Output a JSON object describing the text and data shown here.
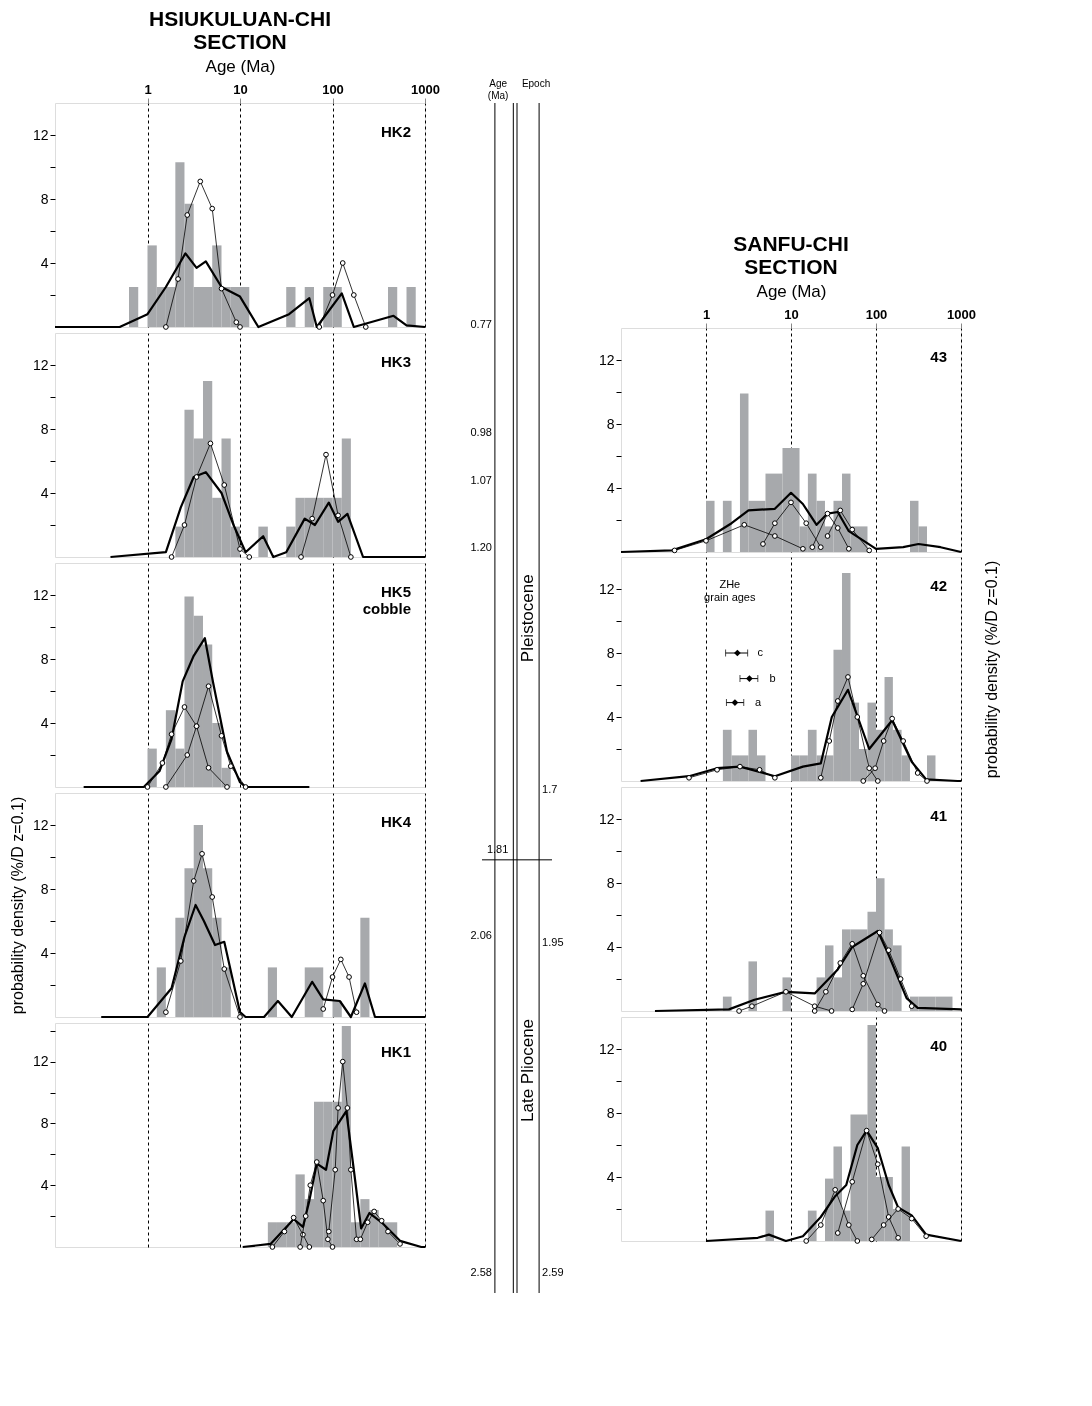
{
  "chart_data": [
    {
      "type": "histogram",
      "title": "HSIUKULUAN-CHI\nSECTION",
      "xlabel": "Age (Ma)",
      "log": "x",
      "grid": "x",
      "xlim": [
        0.1,
        1000
      ],
      "xticks": [
        1,
        10,
        100,
        1000
      ],
      "ylim": [
        0,
        14
      ],
      "yticks": [
        {
          "value": 2,
          "label": null
        },
        4,
        {
          "value": 6,
          "label": null
        },
        8,
        {
          "value": 10,
          "label": null
        },
        12
      ],
      "color": "#a7a9ac",
      "annotations": [
        "HK2"
      ],
      "bins": [
        0.631,
        0.794,
        1,
        1.26,
        1.58,
        2,
        2.51,
        3.16,
        3.98,
        5.01,
        6.31,
        7.94,
        10,
        12.6,
        15.8,
        20,
        25.1,
        31.6,
        39.8,
        50.1,
        63.1,
        79.4,
        100,
        126,
        158,
        200,
        251,
        316,
        398,
        501,
        631,
        794
      ],
      "values": [
        2.5,
        0,
        5.1,
        2.5,
        2.5,
        10.3,
        7.7,
        2.5,
        2.5,
        5.1,
        2.5,
        2.5,
        2.5,
        0,
        0,
        0,
        0,
        2.5,
        0,
        2.5,
        0,
        2.5,
        2.5,
        0,
        0,
        0,
        0,
        0,
        2.5,
        0,
        2.5
      ],
      "series": [
        {
          "type": "line",
          "color": "#000000",
          "x": [
            0.1,
            0.5,
            1,
            1.58,
            2.57,
            3.39,
            4.27,
            6.31,
            10,
            15.8,
            33.9,
            56.2,
            67.6,
            126,
            170,
            457,
            631,
            1000
          ],
          "values": [
            0,
            0,
            0.8,
            2.5,
            4.6,
            3.7,
            4.1,
            2.5,
            1.9,
            0,
            0.8,
            1.8,
            0,
            2.1,
            0,
            0.7,
            0.1,
            0
          ]
        },
        {
          "type": "line",
          "color": "#000000",
          "marker": "circle",
          "x": [
            1.58,
            2.14,
            2.69,
            3.72,
            5.01,
            6.31,
            9.12,
            10
          ],
          "values": [
            0,
            3,
            7,
            9.1,
            7.4,
            2.4,
            0.3,
            0
          ]
        },
        {
          "type": "line",
          "color": "#000000",
          "marker": "circle",
          "x": [
            72,
            100,
            129,
            170,
            229
          ],
          "values": [
            0,
            2,
            4,
            2,
            0
          ]
        }
      ]
    },
    {
      "type": "histogram",
      "log": "x",
      "grid": "x",
      "tick_labels": "y",
      "xlim": [
        0.1,
        1000
      ],
      "xticks": [
        1,
        10,
        100,
        1000
      ],
      "ylim": [
        0,
        14
      ],
      "yticks": [
        {
          "value": 2,
          "label": null
        },
        4,
        {
          "value": 6,
          "label": null
        },
        8,
        {
          "value": 10,
          "label": null
        },
        12
      ],
      "color": "#a7a9ac",
      "annotations": [
        "HK3"
      ],
      "bins": [
        2,
        2.51,
        3.16,
        3.98,
        5.01,
        6.31,
        7.94,
        10,
        12.6,
        15.8,
        20,
        25.1,
        31.6,
        39.8,
        50.1,
        63.1,
        79.4,
        100,
        126,
        158
      ],
      "values": [
        1.9,
        9.2,
        7.4,
        11.0,
        3.7,
        7.4,
        1.9,
        0,
        0,
        1.9,
        0,
        0,
        1.9,
        3.7,
        3.7,
        3.7,
        3.7,
        3.7,
        7.4
      ],
      "series": [
        {
          "type": "line",
          "color": "#000000",
          "x": [
            0.398,
            1.58,
            2.29,
            3.16,
            4.27,
            6.31,
            8.51,
            11.5,
            17.8,
            22.9,
            31.6,
            50.1,
            64.6,
            91.2,
            115,
            145,
            214,
            1000
          ],
          "values": [
            0,
            0.3,
            3.1,
            5.0,
            5.3,
            4.0,
            2.0,
            0.3,
            1.3,
            0,
            0.3,
            2.4,
            2.0,
            3.4,
            2.2,
            2.7,
            0,
            0
          ]
        },
        {
          "type": "line",
          "color": "#000000",
          "marker": "circle",
          "x": [
            1.82,
            2.51,
            3.39,
            4.79,
            6.76,
            10,
            12.6
          ],
          "values": [
            0,
            2,
            5,
            7.1,
            4.5,
            0.5,
            0
          ]
        },
        {
          "type": "line",
          "color": "#000000",
          "marker": "circle",
          "x": [
            45.7,
            60.3,
            85.1,
            115,
            158
          ],
          "values": [
            0,
            2.4,
            6.4,
            2.6,
            0
          ]
        }
      ]
    },
    {
      "type": "histogram",
      "log": "x",
      "grid": "x",
      "tick_labels": "y",
      "xlim": [
        0.1,
        1000
      ],
      "xticks": [
        1,
        10,
        100,
        1000
      ],
      "ylim": [
        0,
        14
      ],
      "yticks": [
        {
          "value": 2,
          "label": null
        },
        4,
        {
          "value": 6,
          "label": null
        },
        8,
        {
          "value": 10,
          "label": null
        },
        12
      ],
      "color": "#a7a9ac",
      "annotations": [
        "HK5\ncobble"
      ],
      "bins": [
        1,
        1.26,
        1.58,
        2,
        2.51,
        3.16,
        3.98,
        5.01,
        6.31,
        7.94
      ],
      "values": [
        2.4,
        0,
        4.8,
        2.4,
        11.9,
        10.7,
        8.9,
        4.0,
        1.2
      ],
      "series": [
        {
          "type": "line",
          "color": "#000000",
          "x": [
            0.204,
            0.912,
            1.35,
            1.82,
            2.4,
            3.16,
            4.17,
            5.13,
            7.24,
            10,
            11.5,
            56.2
          ],
          "values": [
            0,
            0,
            1,
            3,
            6.6,
            8.2,
            9.3,
            6.5,
            2.2,
            0.3,
            0,
            0
          ]
        },
        {
          "type": "line",
          "color": "#000000",
          "marker": "circle",
          "x": [
            1,
            1.45,
            1.82,
            2.51,
            3.39,
            4.57,
            7.24
          ],
          "values": [
            0,
            1.5,
            3.3,
            5.0,
            3.8,
            1.2,
            0
          ]
        },
        {
          "type": "line",
          "color": "#000000",
          "marker": "circle",
          "x": [
            1.58,
            2.69,
            3.39,
            4.57,
            6.31,
            7.94,
            11.5
          ],
          "values": [
            0,
            2,
            3.8,
            6.3,
            3.2,
            1.3,
            0
          ]
        }
      ]
    },
    {
      "type": "histogram",
      "ylabel": "probability density (%/D z=0.1)",
      "log": "x",
      "grid": "x",
      "tick_labels": "y",
      "xlim": [
        0.1,
        1000
      ],
      "xticks": [
        1,
        10,
        100,
        1000
      ],
      "ylim": [
        0,
        14
      ],
      "yticks": [
        {
          "value": 2,
          "label": null
        },
        4,
        {
          "value": 6,
          "label": null
        },
        8,
        {
          "value": 10,
          "label": null
        },
        12
      ],
      "color": "#a7a9ac",
      "annotations": [
        "HK4"
      ],
      "bins": [
        1.26,
        1.58,
        2,
        2.51,
        3.16,
        3.98,
        5.01,
        6.31,
        7.94,
        10,
        12.6,
        15.8,
        20,
        25.1,
        31.6,
        39.8,
        50.1,
        63.1,
        79.4,
        100,
        126,
        158,
        200,
        251
      ],
      "values": [
        3.1,
        0,
        6.2,
        9.3,
        12.0,
        9.3,
        6.2,
        3.1,
        0,
        0,
        0,
        0,
        3.1,
        0,
        0,
        0,
        3.1,
        3.1,
        0,
        1.0,
        0,
        0,
        6.2
      ],
      "series": [
        {
          "type": "line",
          "color": "#000000",
          "x": [
            0.316,
            1,
            1.82,
            2.51,
            3.31,
            4.07,
            5.37,
            6.76,
            10,
            11.5,
            18.2,
            25.7,
            36.3,
            60.3,
            79.4,
            120,
            158,
            224,
            288,
            1000
          ],
          "values": [
            0,
            0,
            1.8,
            5.0,
            7.0,
            6.0,
            4.5,
            4.7,
            0.3,
            0,
            0,
            1.0,
            0,
            2.2,
            1.1,
            1.0,
            0,
            2.1,
            0,
            0
          ]
        },
        {
          "type": "line",
          "color": "#000000",
          "marker": "circle",
          "x": [
            1.58,
            2.29,
            3.16,
            3.89,
            5.01,
            6.76,
            10
          ],
          "values": [
            0.3,
            3.5,
            8.5,
            10.2,
            7.5,
            3,
            0
          ]
        },
        {
          "type": "line",
          "color": "#000000",
          "marker": "circle",
          "x": [
            79.4,
            100,
            123,
            151,
            182
          ],
          "values": [
            0.5,
            2.5,
            3.6,
            2.5,
            0.3
          ]
        }
      ]
    },
    {
      "type": "histogram",
      "log": "x",
      "grid": "x",
      "tick_labels": "y",
      "xlim": [
        0.1,
        1000
      ],
      "xticks": [
        1,
        10,
        100,
        1000
      ],
      "ylim": [
        0,
        14.5
      ],
      "yticks": [
        {
          "value": 2,
          "label": null
        },
        4,
        {
          "value": 6,
          "label": null
        },
        8,
        {
          "value": 10,
          "label": null
        },
        12,
        {
          "value": 14,
          "label": null
        }
      ],
      "color": "#a7a9ac",
      "annotations": [
        "HK1"
      ],
      "bins": [
        20,
        25.1,
        31.6,
        39.8,
        50.1,
        63.1,
        79.4,
        100,
        126,
        158,
        200,
        251,
        316,
        398,
        501
      ],
      "values": [
        1.6,
        1.6,
        1.6,
        4.7,
        3.1,
        9.4,
        9.4,
        9.4,
        14.3,
        1.6,
        3.1,
        2.4,
        1.6,
        1.6
      ],
      "series": [
        {
          "type": "line",
          "color": "#000000",
          "x": [
            10.7,
            21.4,
            38,
            47.9,
            56.2,
            67.6,
            85.1,
            102,
            141,
            170,
            204,
            251,
            339,
            537,
            912,
            1000
          ],
          "values": [
            0,
            0.2,
            1.8,
            1.3,
            3.0,
            5.4,
            5.0,
            7.5,
            8.8,
            5.0,
            1.2,
            2.2,
            1.6,
            0.4,
            0,
            0
          ]
        },
        {
          "type": "line",
          "color": "#000000",
          "marker": "circle",
          "x": [
            22.4,
            30.2,
            38,
            47.9,
            56.2
          ],
          "values": [
            0,
            1.0,
            1.9,
            0.8,
            0
          ]
        },
        {
          "type": "line",
          "color": "#000000",
          "marker": "circle",
          "x": [
            44.7,
            51.3,
            57.5,
            67.6,
            79.4,
            89.1,
            100
          ],
          "values": [
            0,
            2,
            4,
            5.5,
            3,
            0.5,
            0
          ]
        },
        {
          "type": "line",
          "color": "#000000",
          "marker": "circle",
          "x": [
            91.2,
            107,
            115,
            129,
            145,
            158,
            182
          ],
          "values": [
            1,
            5,
            9,
            12,
            9,
            5,
            0.5
          ]
        },
        {
          "type": "line",
          "color": "#000000",
          "marker": "circle",
          "x": [
            200,
            240,
            282,
            340,
            398,
            537
          ],
          "values": [
            0.5,
            1.6,
            2.3,
            1.7,
            1.0,
            0.2
          ]
        }
      ]
    },
    {
      "type": "other",
      "ylabel": "Age\n(Ma)",
      "y2label": "Epoch",
      "annotations": [
        "0.77",
        "0.98",
        "1.07",
        "1.20",
        "1.81",
        "2.06",
        "2.58",
        "1.7",
        "1.95",
        "2.59",
        "Pleistocene",
        "Late Pliocene"
      ]
    },
    {
      "type": "histogram",
      "title": "SANFU-CHI\nSECTION",
      "xlabel": "Age (Ma)",
      "log": "x",
      "grid": "x",
      "xlim": [
        0.1,
        1000
      ],
      "xticks": [
        1,
        10,
        100,
        1000
      ],
      "ylim": [
        0,
        14
      ],
      "yticks": [
        {
          "value": 2,
          "label": null
        },
        4,
        {
          "value": 6,
          "label": null
        },
        8,
        {
          "value": 10,
          "label": null
        },
        12
      ],
      "color": "#a7a9ac",
      "annotations": [
        "43"
      ],
      "bins": [
        1,
        1.26,
        1.58,
        2,
        2.51,
        3.16,
        3.98,
        5.01,
        6.31,
        7.94,
        10,
        12.6,
        15.8,
        20,
        25.1,
        31.6,
        39.8,
        50.1,
        63.1,
        79.4,
        100,
        126,
        158,
        200,
        251,
        316,
        398
      ],
      "values": [
        3.2,
        0,
        3.2,
        0,
        9.9,
        3.2,
        3.2,
        4.9,
        4.9,
        6.5,
        6.5,
        1.6,
        4.9,
        3.2,
        1.6,
        3.2,
        4.9,
        1.6,
        1.6,
        0,
        0,
        0,
        0,
        0,
        3.2,
        1.6
      ],
      "series": [
        {
          "type": "line",
          "color": "#000000",
          "x": [
            0.1,
            0.398,
            1,
            2,
            3.16,
            6.46,
            10,
            13.8,
            20,
            26.9,
            35.5,
            47.9,
            100,
            209,
            316,
            575,
            1000
          ],
          "values": [
            0,
            0.1,
            0.8,
            1.8,
            2.6,
            2.7,
            3.7,
            3.0,
            1.7,
            2.4,
            2.5,
            1.3,
            0.2,
            0.3,
            0.5,
            0.3,
            0
          ]
        },
        {
          "type": "line",
          "color": "#000000",
          "marker": "circle",
          "x": [
            0.427,
            1,
            2.82,
            6.46,
            13.8
          ],
          "values": [
            0.1,
            0.7,
            1.7,
            1.0,
            0.2
          ]
        },
        {
          "type": "line",
          "color": "#000000",
          "marker": "circle",
          "x": [
            4.68,
            6.46,
            10,
            15.1,
            22.4
          ],
          "values": [
            0.5,
            1.8,
            3.1,
            1.8,
            0.3
          ]
        },
        {
          "type": "line",
          "color": "#000000",
          "marker": "circle",
          "x": [
            17.8,
            26.9,
            35.5,
            47.9
          ],
          "values": [
            0.3,
            2.4,
            1.5,
            0.2
          ]
        },
        {
          "type": "line",
          "color": "#000000",
          "marker": "circle",
          "x": [
            26.9,
            38,
            52.5,
            83.2
          ],
          "values": [
            1.0,
            2.6,
            1.4,
            0.1
          ]
        }
      ]
    },
    {
      "type": "histogram",
      "log": "x",
      "grid": "x",
      "tick_labels": "y",
      "xlim": [
        0.1,
        1000
      ],
      "xticks": [
        1,
        10,
        100,
        1000
      ],
      "ylim": [
        0,
        14
      ],
      "yticks": [
        {
          "value": 2,
          "label": null
        },
        4,
        {
          "value": 6,
          "label": null
        },
        8,
        {
          "value": 10,
          "label": null
        },
        12
      ],
      "color": "#a7a9ac",
      "ylabel": "probability density (%/D z=0.1)",
      "annotations": [
        "42",
        "ZHe\ngrain ages",
        {
          "text": "a",
          "x": 2.19,
          "y": 4.9
        },
        {
          "text": "b",
          "x": 3.24,
          "y": 6.4
        },
        {
          "text": "c",
          "x": 2.34,
          "y": 8.0
        }
      ],
      "bins": [
        1.58,
        2,
        2.51,
        3.16,
        3.98,
        5.01,
        6.31,
        7.94,
        10,
        12.6,
        15.8,
        20,
        25.1,
        31.6,
        39.8,
        50.1,
        63.1,
        79.4,
        100,
        126,
        158,
        200,
        251,
        316,
        398,
        501
      ],
      "values": [
        3.2,
        1.6,
        1.6,
        3.2,
        1.6,
        0,
        0,
        0,
        1.6,
        1.6,
        3.2,
        1.6,
        1.6,
        8.2,
        13.0,
        4.9,
        2.0,
        4.9,
        3.2,
        6.5,
        3.2,
        1.6,
        0,
        0,
        1.6
      ],
      "series": [
        {
          "type": "line",
          "color": "#000000",
          "x": [
            0.17,
            0.631,
            1.35,
            2.51,
            6.46,
            13.8,
            22.4,
            30.2,
            46.8,
            83.2,
            155,
            263,
            389,
            912,
            1000
          ],
          "values": [
            0,
            0.3,
            0.8,
            0.9,
            0.3,
            0.9,
            1.1,
            4.0,
            5.7,
            2.0,
            3.8,
            1.2,
            0.1,
            0,
            0
          ]
        },
        {
          "type": "line",
          "color": "#000000",
          "marker": "circle",
          "x": [
            0.631,
            1.35,
            2.51,
            4.27,
            6.46
          ],
          "values": [
            0.2,
            0.7,
            0.9,
            0.7,
            0.2
          ]
        },
        {
          "type": "line",
          "color": "#000000",
          "marker": "circle",
          "x": [
            22.4,
            28.2,
            35.5,
            46.8,
            60.3,
            83.2,
            105
          ],
          "values": [
            0.2,
            2.5,
            5.0,
            6.5,
            4.0,
            0.8,
            0
          ]
        },
        {
          "type": "line",
          "color": "#000000",
          "marker": "circle",
          "x": [
            70.8,
            97.7,
            123,
            155,
            209,
            309,
            398
          ],
          "values": [
            0,
            0.8,
            2.5,
            3.9,
            2.5,
            0.5,
            0
          ]
        },
        {
          "type": "scatter",
          "color": "#000000",
          "marker": "diamond",
          "x": [
            2.19,
            3.24,
            2.34
          ],
          "values": [
            4.9,
            6.4,
            8.0
          ],
          "xerrors": [
            [
              1.74,
              2.78
            ],
            [
              2.51,
              4.07
            ],
            [
              1.7,
              3.09
            ]
          ]
        }
      ]
    },
    {
      "type": "histogram",
      "log": "x",
      "grid": "x",
      "tick_labels": "y",
      "xlim": [
        0.1,
        1000
      ],
      "xticks": [
        1,
        10,
        100,
        1000
      ],
      "ylim": [
        0,
        14
      ],
      "yticks": [
        {
          "value": 2,
          "label": null
        },
        4,
        {
          "value": 6,
          "label": null
        },
        8,
        {
          "value": 10,
          "label": null
        },
        12
      ],
      "color": "#a7a9ac",
      "annotations": [
        "41"
      ],
      "bins": [
        1.58,
        2,
        2.51,
        3.16,
        3.98,
        5.01,
        6.31,
        7.94,
        10,
        12.6,
        15.8,
        20,
        25.1,
        31.6,
        39.8,
        50.1,
        63.1,
        79.4,
        100,
        126,
        158,
        200,
        251,
        316,
        398,
        501,
        631,
        794
      ],
      "values": [
        0.9,
        0,
        0,
        3.1,
        0,
        0,
        0,
        2.1,
        0,
        0,
        0,
        2.1,
        4.1,
        2.1,
        5.1,
        5.1,
        5.1,
        6.2,
        8.3,
        5.1,
        4.1,
        0,
        0.9,
        0.9,
        0.9,
        0.9,
        0.9
      ],
      "series": [
        {
          "type": "line",
          "color": "#000000",
          "x": [
            0.251,
            1.86,
            3.72,
            8.71,
            19,
            35.5,
            52.5,
            105,
            141,
            229,
            309,
            1000
          ],
          "values": [
            0,
            0.1,
            0.7,
            1.2,
            1.1,
            2.6,
            4.0,
            5.0,
            3.5,
            0.8,
            0.2,
            0.1
          ]
        },
        {
          "type": "line",
          "color": "#000000",
          "marker": "circle",
          "x": [
            2.45,
            3.47,
            8.71,
            19,
            30
          ],
          "values": [
            0,
            0.3,
            1.2,
            0.3,
            0
          ]
        },
        {
          "type": "line",
          "color": "#000000",
          "marker": "circle",
          "x": [
            19,
            25.7,
            38,
            52.5,
            70.8,
            105,
            126
          ],
          "values": [
            0,
            1.2,
            3,
            4.2,
            2.2,
            0.4,
            0
          ]
        },
        {
          "type": "line",
          "color": "#000000",
          "marker": "circle",
          "x": [
            52.5,
            70.8,
            110,
            141,
            195,
            263
          ],
          "values": [
            0.1,
            1.7,
            4.9,
            3.8,
            2.0,
            0.3
          ]
        }
      ]
    },
    {
      "type": "histogram",
      "log": "x",
      "grid": "x",
      "tick_labels": "y",
      "xlim": [
        0.1,
        1000
      ],
      "xticks": [
        1,
        10,
        100,
        1000
      ],
      "ylim": [
        0,
        14
      ],
      "yticks": [
        {
          "value": 2,
          "label": null
        },
        4,
        {
          "value": 6,
          "label": null
        },
        8,
        {
          "value": 10,
          "label": null
        },
        12
      ],
      "color": "#a7a9ac",
      "annotations": [
        "40"
      ],
      "bins": [
        5.01,
        6.31,
        7.94,
        10,
        12.6,
        15.8,
        20,
        25.1,
        31.6,
        39.8,
        50.1,
        63.1,
        79.4,
        100,
        126,
        158,
        200,
        251
      ],
      "values": [
        1.9,
        0,
        0,
        0,
        0,
        1.9,
        0,
        3.9,
        5.9,
        1.9,
        7.9,
        7.9,
        13.5,
        4.0,
        4.0,
        2.0,
        5.9
      ],
      "series": [
        {
          "type": "line",
          "color": "#000000",
          "x": [
            1,
            4.07,
            5.5,
            8.71,
            13.8,
            22.4,
            33.1,
            44.7,
            60.3,
            77.6,
            105,
            141,
            182,
            263,
            389,
            1000
          ],
          "values": [
            0,
            0.2,
            0.4,
            0,
            0.3,
            1.5,
            2.8,
            3.5,
            6.0,
            6.9,
            5.8,
            3.5,
            2.1,
            1.6,
            0.4,
            0
          ]
        },
        {
          "type": "line",
          "color": "#000000",
          "marker": "circle",
          "x": [
            15.1,
            22.4,
            33.1,
            47.9,
            60.3
          ],
          "values": [
            0,
            1.0,
            3.2,
            1.0,
            0
          ]
        },
        {
          "type": "line",
          "color": "#000000",
          "marker": "circle",
          "x": [
            35.5,
            52.5,
            77.6,
            105,
            141,
            182
          ],
          "values": [
            0.5,
            3.7,
            6.9,
            4.8,
            1.5,
            0.2
          ]
        },
        {
          "type": "line",
          "color": "#000000",
          "marker": "circle",
          "x": [
            89.1,
            123,
            182,
            263,
            389
          ],
          "values": [
            0.1,
            1.0,
            2.0,
            1.4,
            0.3
          ]
        }
      ]
    }
  ]
}
